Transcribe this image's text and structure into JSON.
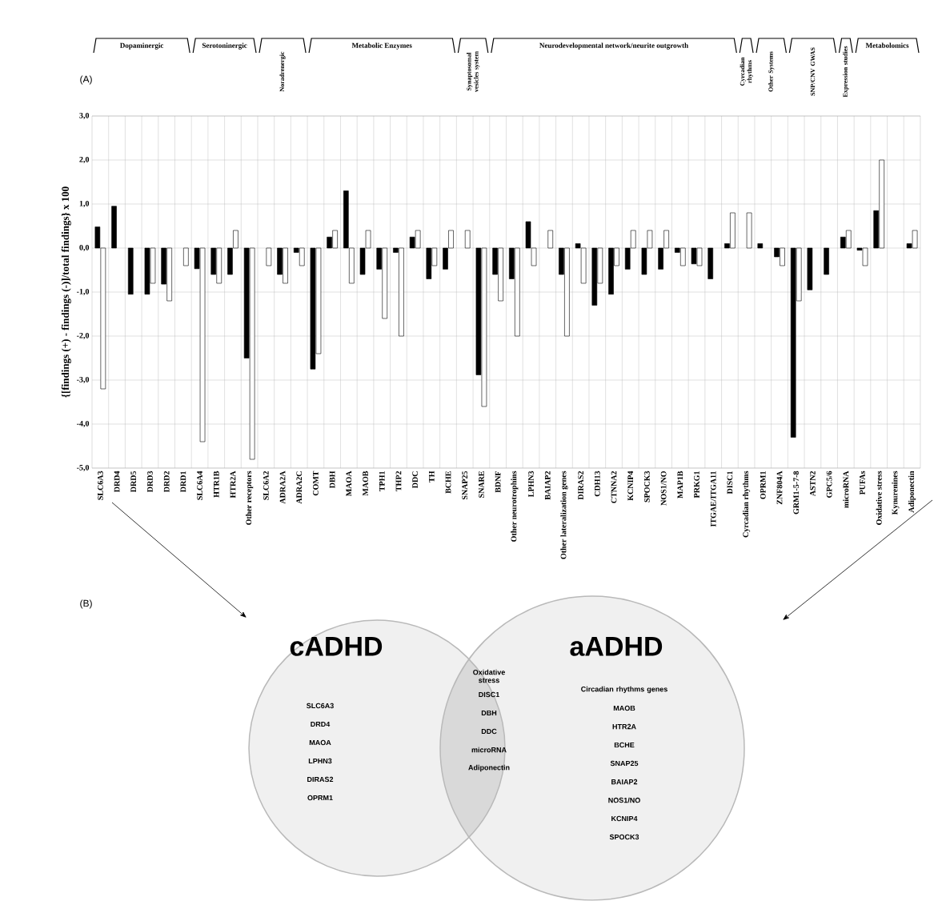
{
  "chart_data": [
    {
      "type": "bar",
      "ylabel": "{[findings (+) - findings (-)]/total findings} x 100",
      "categories": [
        "SLC6A3",
        "DRD4",
        "DRD5",
        "DRD3",
        "DRD2",
        "DRD1",
        "SLC6A4",
        "HTR1B",
        "HTR2A",
        "Other receptors",
        "SLC6A2",
        "ADRA2A",
        "ADRA2C",
        "COMT",
        "DBH",
        "MAOA",
        "MAOB",
        "TPH1",
        "THP2",
        "DDC",
        "TH",
        "BCHE",
        "SNAP25",
        "SNARE",
        "BDNF",
        "Other neurotrophins",
        "LPHN3",
        "BAIAP2",
        "Other lateralization genes",
        "DIRAS2",
        "CDH13",
        "CTNNA2",
        "KCNIP4",
        "SPOCK3",
        "NOS1/NO",
        "MAP1B",
        "PRKG1",
        "ITGAE/ITGA11",
        "DISC1",
        "Cyrcadian rhythms",
        "OPRM1",
        "ZNF804A",
        "GRM1-5-7-8",
        "ASTN2",
        "GPC5/6",
        "microRNA",
        "PUFAs",
        "Oxidative stress",
        "Kynurenines",
        "Adiponectin"
      ],
      "series": [
        {
          "color": "#000000",
          "values": [
            0.48,
            0.95,
            -1.05,
            -1.05,
            -0.82,
            null,
            -0.47,
            -0.6,
            -0.6,
            -2.5,
            null,
            -0.6,
            -0.1,
            -2.75,
            0.25,
            1.3,
            -0.6,
            -0.48,
            -0.1,
            0.25,
            -0.7,
            -0.48,
            null,
            -2.88,
            -0.6,
            -0.7,
            0.6,
            null,
            -0.6,
            0.1,
            -1.3,
            -1.05,
            -0.48,
            -0.6,
            -0.48,
            -0.1,
            -0.36,
            -0.7,
            0.1,
            null,
            0.1,
            -0.2,
            -4.3,
            -0.95,
            -0.6,
            0.25,
            -0.05,
            0.85,
            null,
            0.1
          ]
        },
        {
          "color": "#ffffff",
          "values": [
            -3.2,
            null,
            null,
            -0.8,
            -1.2,
            -0.4,
            -4.4,
            -0.8,
            0.4,
            -4.8,
            -0.4,
            -0.8,
            -0.4,
            -2.4,
            0.4,
            -0.8,
            0.4,
            -1.6,
            -2.0,
            0.4,
            -0.4,
            0.4,
            0.4,
            -3.6,
            -1.2,
            -2.0,
            -0.4,
            0.4,
            -2.0,
            -0.8,
            -0.8,
            -0.4,
            0.4,
            0.4,
            0.4,
            -0.4,
            -0.4,
            null,
            0.8,
            0.8,
            null,
            -0.4,
            -1.2,
            null,
            null,
            0.4,
            -0.4,
            2.0,
            null,
            0.4
          ]
        }
      ],
      "ylim": [
        -5,
        3
      ],
      "yticks": [
        {
          "value": -5,
          "label": "-5,0"
        },
        {
          "value": -4,
          "label": "-4,0"
        },
        {
          "value": -3,
          "label": "-3,0"
        },
        {
          "value": -2,
          "label": "-2,0"
        },
        {
          "value": -1,
          "label": "-1,0"
        },
        {
          "value": 0,
          "label": "0,0"
        },
        {
          "value": 1,
          "label": "1,0"
        },
        {
          "value": 2,
          "label": "2,0"
        },
        {
          "value": 3,
          "label": "3,0"
        }
      ],
      "grid": true,
      "annotations": [
        "(A)",
        "Dopaminergic",
        "Serotoninergic",
        "Noradrenergic",
        "Metabolic Enzymes",
        "Synaptosomal vesicles system",
        "Neurodevelopmental network/neurite outgrowth",
        "Cyrcadian rhythms",
        "Other Systems",
        "SNP/CNV GWAS",
        "Expression studies",
        "Metabolomics"
      ]
    },
    {
      "type": "other",
      "annotations": [
        "(B)",
        "cADHD",
        "aADHD",
        "SLC6A3",
        "DRD4",
        "MAOA",
        "LPHN3",
        "DIRAS2",
        "OPRM1",
        "Oxidative stress",
        "DISC1",
        "DBH",
        "DDC",
        "microRNA",
        "Adiponectin",
        "Circadian rhythms genes",
        "MAOB",
        "HTR2A",
        "BCHE",
        "SNAP25",
        "BAIAP2",
        "NOS1/NO",
        "KCNIP4",
        "SPOCK3"
      ]
    }
  ]
}
